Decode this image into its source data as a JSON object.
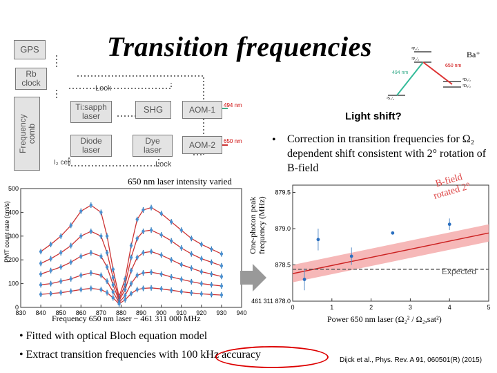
{
  "title": "Transition frequencies",
  "diagram": {
    "gps": "GPS",
    "rb_clock": "Rb\nclock",
    "frequency_comb": "Frequency\ncomb",
    "lock_top": "Lock",
    "lock_bottom": "Lock",
    "tisapph": "Ti:sapph\nlaser",
    "shg": "SHG",
    "aom1": "AOM-1",
    "diode": "Diode\nlaser",
    "dye": "Dye\nlaser",
    "aom2": "AOM-2",
    "i2_cell": "I₂ cell",
    "label_494": "494 nm",
    "label_650": "650 nm"
  },
  "level_diagram": {
    "ion": "Ba⁺",
    "level_p32": "²P₃/₂",
    "level_p12": "²P₁/₂",
    "level_s12": "²S₁/₂",
    "level_d52": "²D₅/₂",
    "level_d32": "²D₃/₂",
    "line_650": "650 nm",
    "line_494": "494 nm"
  },
  "light_shift": {
    "heading": "Light shift?",
    "bullet": "Correction in transition frequencies for Ω₂ dependent shift consistent with 2° rotation of B-field"
  },
  "left_plot_caption": "650 nm laser intensity varied",
  "bullets": [
    "Fitted with optical Bloch equation model",
    "Extract transition frequencies with 100 kHz accuracy"
  ],
  "citation": "Dijck et al., Phys. Rev. A 91, 060501(R) (2015)",
  "chart_data": [
    {
      "type": "scatter",
      "ylabel": "PMT count rate (cnt/s)",
      "xlabel": "Frequency 650 nm laser − 461 311 000 MHz",
      "xlim": [
        830,
        940
      ],
      "ylim": [
        0,
        500
      ],
      "xticks": [
        "830",
        "840",
        "850",
        "860",
        "870",
        "880",
        "890",
        "900",
        "910",
        "920",
        "930",
        "940"
      ],
      "yticks": [
        "0",
        "100",
        "200",
        "300",
        "400",
        "500"
      ],
      "series": [
        {
          "values_x": [
            840,
            845,
            850,
            855,
            860,
            865,
            870,
            873,
            876,
            879,
            882,
            885,
            888,
            891,
            895,
            900,
            905,
            910,
            915,
            920,
            925,
            930
          ],
          "values_y": [
            235,
            265,
            300,
            345,
            405,
            430,
            400,
            300,
            160,
            45,
            120,
            260,
            370,
            410,
            420,
            395,
            360,
            325,
            290,
            265,
            245,
            225
          ]
        },
        {
          "values_x": [
            840,
            845,
            850,
            855,
            860,
            865,
            870,
            873,
            876,
            879,
            882,
            885,
            888,
            891,
            895,
            900,
            905,
            910,
            915,
            920,
            925,
            930
          ],
          "values_y": [
            185,
            205,
            230,
            260,
            300,
            320,
            300,
            230,
            125,
            35,
            95,
            210,
            290,
            320,
            325,
            305,
            280,
            250,
            225,
            205,
            190,
            175
          ]
        },
        {
          "values_x": [
            840,
            845,
            850,
            855,
            860,
            865,
            870,
            873,
            876,
            879,
            882,
            885,
            888,
            891,
            895,
            900,
            905,
            910,
            915,
            920,
            925,
            930
          ],
          "values_y": [
            140,
            155,
            170,
            190,
            215,
            230,
            215,
            170,
            95,
            28,
            75,
            155,
            210,
            230,
            235,
            220,
            200,
            180,
            165,
            150,
            140,
            130
          ]
        },
        {
          "values_x": [
            840,
            845,
            850,
            855,
            860,
            865,
            870,
            873,
            876,
            879,
            882,
            885,
            888,
            891,
            895,
            900,
            905,
            910,
            915,
            920,
            925,
            930
          ],
          "values_y": [
            95,
            100,
            110,
            120,
            135,
            145,
            135,
            110,
            65,
            20,
            50,
            100,
            135,
            145,
            148,
            140,
            128,
            118,
            108,
            100,
            95,
            90
          ]
        },
        {
          "values_x": [
            840,
            845,
            850,
            855,
            860,
            865,
            870,
            873,
            876,
            879,
            882,
            885,
            888,
            891,
            895,
            900,
            905,
            910,
            915,
            920,
            925,
            930
          ],
          "values_y": [
            55,
            58,
            62,
            68,
            75,
            80,
            75,
            62,
            40,
            15,
            32,
            58,
            75,
            80,
            82,
            78,
            72,
            66,
            61,
            57,
            54,
            52
          ]
        }
      ]
    },
    {
      "type": "scatter",
      "ylabel": "One-photon peak\nfrequency (MHz)",
      "xlabel": "Power 650 nm laser (Ω₂² / Ω₂,sat²)",
      "xlim": [
        0,
        5
      ],
      "ylim": [
        878.0,
        879.6
      ],
      "xticks": [
        "0",
        "1",
        "2",
        "3",
        "4",
        "5"
      ],
      "yticks": [
        "461 311 878.0",
        "878.5",
        "879.0",
        "879.5"
      ],
      "points": [
        {
          "x": 0.3,
          "y": 878.3,
          "err": 0.15
        },
        {
          "x": 0.65,
          "y": 878.85,
          "err": 0.15
        },
        {
          "x": 1.5,
          "y": 878.62,
          "err": 0.12
        },
        {
          "x": 2.55,
          "y": 878.94,
          "err": 0.02
        },
        {
          "x": 4.0,
          "y": 879.06,
          "err": 0.08
        }
      ],
      "fit_line": [
        [
          0,
          878.38
        ],
        [
          5,
          878.94
        ]
      ],
      "band_halfwidth": 0.12,
      "expected_y": 878.44,
      "expected_label": "Expected",
      "annotation": "B-field\nrotated 2°"
    }
  ]
}
